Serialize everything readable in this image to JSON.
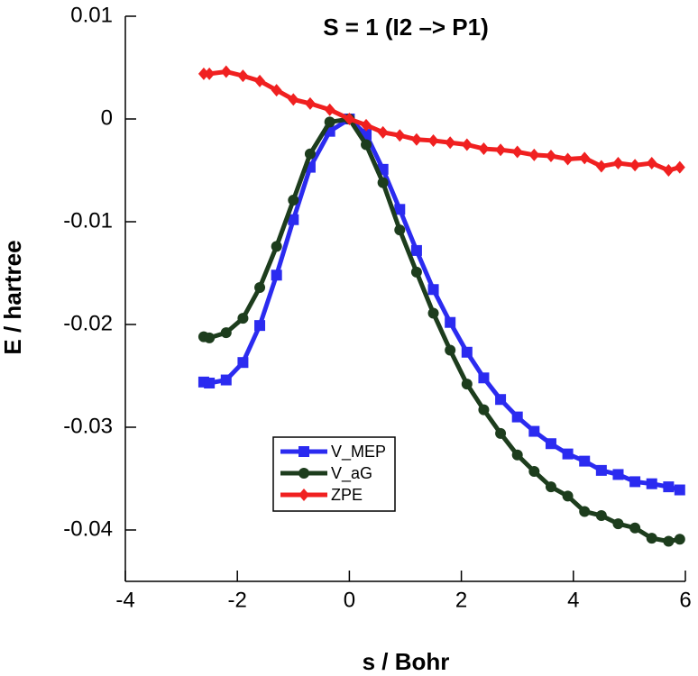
{
  "chart_data": {
    "type": "line",
    "title": "S = 1 (I2 –> P1)",
    "xlabel": "s / Bohr",
    "ylabel": "E / hartree",
    "x": [
      -2.6,
      -2.5,
      -2.2,
      -1.9,
      -1.6,
      -1.3,
      -1.0,
      -0.7,
      -0.35,
      0,
      0.3,
      0.6,
      0.9,
      1.2,
      1.5,
      1.8,
      2.1,
      2.4,
      2.7,
      3.0,
      3.3,
      3.6,
      3.9,
      4.2,
      4.5,
      4.8,
      5.1,
      5.4,
      5.7,
      5.9
    ],
    "series": [
      {
        "name": "V_MEP",
        "color": "#2b2bf0",
        "marker": "square",
        "values": [
          -0.0256,
          -0.0257,
          -0.0254,
          -0.0237,
          -0.0201,
          -0.0152,
          -0.0098,
          -0.0047,
          -0.0012,
          0,
          -0.0015,
          -0.0049,
          -0.0088,
          -0.0128,
          -0.0166,
          -0.0198,
          -0.0227,
          -0.0252,
          -0.0273,
          -0.029,
          -0.0304,
          -0.0316,
          -0.0326,
          -0.0333,
          -0.0342,
          -0.0346,
          -0.0353,
          -0.0355,
          -0.0358,
          -0.0361
        ]
      },
      {
        "name": "V_aG",
        "color": "#1d3d1d",
        "marker": "circle",
        "values": [
          -0.0212,
          -0.0213,
          -0.0208,
          -0.0194,
          -0.0164,
          -0.0124,
          -0.0079,
          -0.0034,
          -0.0003,
          0,
          -0.0025,
          -0.0062,
          -0.0108,
          -0.0149,
          -0.0189,
          -0.0225,
          -0.0258,
          -0.0283,
          -0.0306,
          -0.0327,
          -0.0343,
          -0.0358,
          -0.0367,
          -0.0382,
          -0.0386,
          -0.0394,
          -0.0398,
          -0.0408,
          -0.0411,
          -0.0409
        ]
      },
      {
        "name": "ZPE",
        "color": "#f02020",
        "marker": "diamond",
        "values": [
          0.0044,
          0.0044,
          0.0046,
          0.0042,
          0.0037,
          0.0028,
          0.0019,
          0.0015,
          0.0009,
          0,
          -0.0006,
          -0.0013,
          -0.0016,
          -0.002,
          -0.0021,
          -0.0023,
          -0.0025,
          -0.0029,
          -0.003,
          -0.0032,
          -0.0035,
          -0.0036,
          -0.0039,
          -0.0038,
          -0.0046,
          -0.0043,
          -0.0045,
          -0.0043,
          -0.005,
          -0.0047
        ]
      }
    ],
    "xlim": [
      -4,
      6
    ],
    "xticks": [
      -4,
      -2,
      0,
      2,
      4,
      6
    ],
    "ylim": [
      -0.045,
      0.01
    ],
    "yticks": [
      0.01,
      0,
      -0.01,
      -0.02,
      -0.03,
      -0.04
    ],
    "legend": "lower center"
  }
}
